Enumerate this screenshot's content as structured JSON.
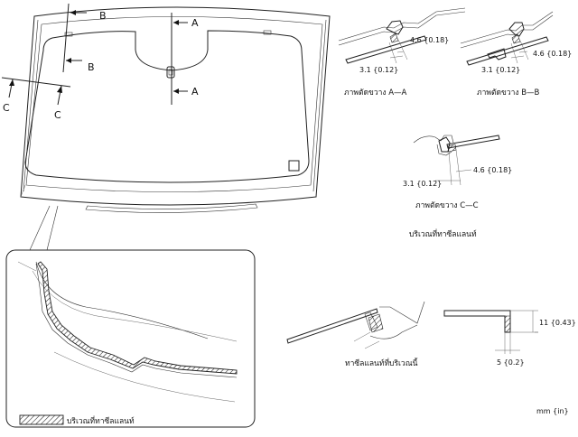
{
  "main_view": {
    "label_a_top": "A",
    "label_a_bottom": "A",
    "label_b_top": "B",
    "label_b_bottom": "B",
    "label_c_left": "C",
    "label_c_right": "C"
  },
  "section_a": {
    "dim_top": "4.6 {0.18}",
    "dim_bottom": "3.1 {0.12}",
    "caption": "ภาพตัดขวาง A—A"
  },
  "section_b": {
    "dim_top": "4.6 {0.18}",
    "dim_bottom": "3.1 {0.12}",
    "caption": "ภาพตัดขวาง B—B"
  },
  "section_c": {
    "dim_right": "4.6 {0.18}",
    "dim_left": "3.1 {0.12}",
    "caption": "ภาพตัดขวาง C—C"
  },
  "sealant_area_title": "บริเวณที่ทาซีลแลนท์",
  "detail_lower": {
    "apply_label": "ทาซีลแลนท์ที่บริเวณนี้",
    "dim_height": "11 {0.43}",
    "dim_width": "5 {0.2}"
  },
  "legend": {
    "label": "บริเวณที่ทาซีลแลนท์"
  },
  "unit_note": "mm {in}"
}
